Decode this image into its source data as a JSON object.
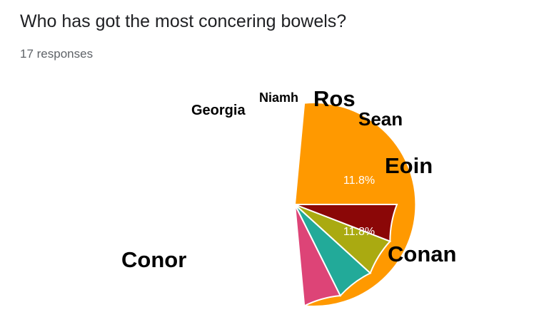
{
  "header": {
    "title": "Who has got the most concering bowels?",
    "responses": "17 responses"
  },
  "chart_data": {
    "type": "pie",
    "total": 17,
    "slices": [
      {
        "label": "Eoin",
        "count": 2,
        "percent": "11.8%",
        "color": "#b5762a",
        "show_percent": true
      },
      {
        "label": "Conan",
        "count": 2,
        "percent": "11.8%",
        "color": "#dd3b13",
        "show_percent": true
      },
      {
        "label": "Conor",
        "count": 9,
        "percent": "52.9%",
        "color": "#ff9900",
        "show_percent": true
      },
      {
        "label": "Georgia",
        "count": 1,
        "percent": "5.9%",
        "color": "#dd4477",
        "show_percent": false
      },
      {
        "label": "Niamh",
        "count": 1,
        "percent": "5.9%",
        "color": "#22aa99",
        "show_percent": false
      },
      {
        "label": "Ros",
        "count": 1,
        "percent": "5.9%",
        "color": "#aaaa11",
        "show_percent": false
      },
      {
        "label": "Sean",
        "count": 1,
        "percent": "5.9%",
        "color": "#8b0707",
        "show_percent": false
      }
    ]
  }
}
